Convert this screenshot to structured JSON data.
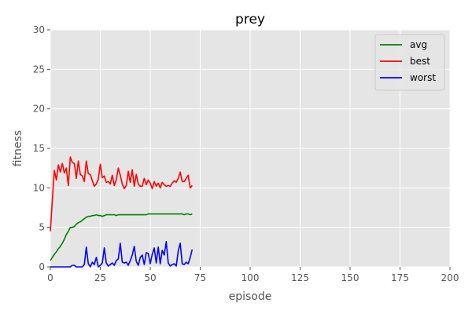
{
  "chart_data": {
    "type": "line",
    "title": "prey",
    "xlabel": "episode",
    "ylabel": "fitness",
    "xlim": [
      0,
      200
    ],
    "ylim": [
      0,
      30
    ],
    "xticks": [
      "0",
      "25",
      "50",
      "75",
      "100",
      "125",
      "150",
      "175",
      "200"
    ],
    "yticks": [
      "0",
      "5",
      "10",
      "15",
      "20",
      "25",
      "30"
    ],
    "grid": true,
    "legend_position": "top-right",
    "x": [
      0,
      1,
      2,
      3,
      4,
      5,
      6,
      7,
      8,
      9,
      10,
      11,
      12,
      13,
      14,
      15,
      16,
      17,
      18,
      19,
      20,
      21,
      22,
      23,
      24,
      25,
      26,
      27,
      28,
      29,
      30,
      31,
      32,
      33,
      34,
      35,
      36,
      37,
      38,
      39,
      40,
      41,
      42,
      43,
      44,
      45,
      46,
      47,
      48,
      49,
      50,
      51,
      52,
      53,
      54,
      55,
      56,
      57,
      58,
      59,
      60,
      61,
      62,
      63,
      64,
      65,
      66,
      67,
      68,
      69,
      70,
      71
    ],
    "series": [
      {
        "name": "avg",
        "color": "#008000",
        "values": [
          0.8,
          1.2,
          1.6,
          1.9,
          2.3,
          2.6,
          3.0,
          3.5,
          4.1,
          4.5,
          5.0,
          5.0,
          5.1,
          5.4,
          5.6,
          5.7,
          5.9,
          6.1,
          6.3,
          6.4,
          6.4,
          6.5,
          6.5,
          6.6,
          6.5,
          6.5,
          6.4,
          6.5,
          6.6,
          6.6,
          6.6,
          6.6,
          6.6,
          6.5,
          6.6,
          6.6,
          6.6,
          6.6,
          6.6,
          6.6,
          6.6,
          6.6,
          6.6,
          6.6,
          6.6,
          6.6,
          6.6,
          6.6,
          6.6,
          6.7,
          6.7,
          6.7,
          6.7,
          6.7,
          6.7,
          6.7,
          6.7,
          6.7,
          6.7,
          6.7,
          6.7,
          6.7,
          6.7,
          6.7,
          6.7,
          6.7,
          6.7,
          6.6,
          6.7,
          6.7,
          6.6,
          6.7
        ]
      },
      {
        "name": "best",
        "color": "#ff0000",
        "values": [
          4.5,
          8.5,
          12.2,
          11.0,
          12.9,
          12.0,
          13.1,
          11.9,
          12.5,
          10.3,
          13.9,
          13.2,
          13.1,
          11.2,
          13.4,
          11.7,
          11.5,
          10.8,
          13.4,
          11.8,
          11.7,
          10.9,
          10.2,
          10.5,
          11.1,
          13.0,
          11.3,
          11.5,
          10.7,
          10.8,
          10.5,
          11.6,
          10.3,
          11.0,
          12.5,
          11.6,
          10.5,
          9.9,
          10.3,
          12.1,
          10.7,
          12.3,
          10.2,
          11.7,
          10.5,
          10.2,
          10.2,
          11.2,
          10.4,
          11.0,
          10.6,
          9.9,
          10.8,
          10.2,
          10.6,
          10.0,
          10.7,
          10.4,
          10.2,
          10.3,
          10.2,
          10.6,
          10.9,
          10.7,
          11.2,
          12.0,
          10.8,
          10.8,
          11.2,
          11.6,
          10.0,
          10.3
        ]
      },
      {
        "name": "worst",
        "color": "#0000ff",
        "values": [
          0,
          0,
          0,
          0,
          0,
          0,
          0,
          0,
          0,
          0,
          0,
          0.2,
          0.2,
          0,
          0,
          0,
          0,
          0.3,
          2.5,
          0.4,
          0,
          0.6,
          0.3,
          1.2,
          0,
          0.2,
          0.5,
          2.4,
          0.5,
          0.1,
          0.3,
          0.5,
          0.2,
          0.8,
          1.0,
          3.0,
          0.6,
          0.5,
          0.6,
          0.2,
          0.8,
          1.5,
          2.6,
          0.7,
          0.2,
          1.2,
          1.5,
          0.3,
          1.8,
          1.7,
          0.4,
          1.6,
          2.4,
          0.5,
          2.5,
          0.4,
          2.1,
          1.5,
          3.2,
          0.5,
          0.1,
          0.3,
          0.4,
          0.1,
          2.0,
          3.0,
          0.4,
          0.3,
          0.6,
          0.4,
          1.2,
          2.2
        ]
      }
    ]
  }
}
